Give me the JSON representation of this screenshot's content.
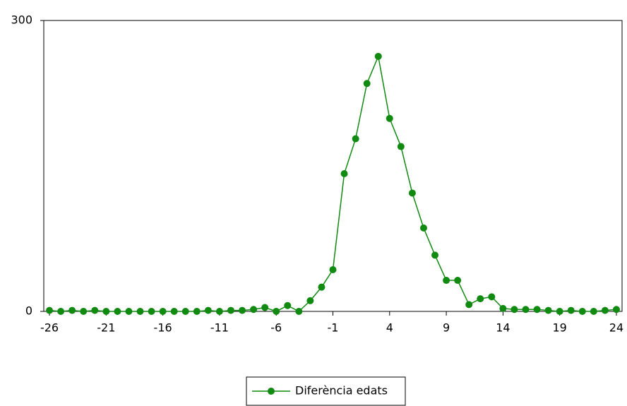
{
  "chart_data": {
    "type": "line",
    "x": [
      -26,
      -25,
      -24,
      -23,
      -22,
      -21,
      -20,
      -19,
      -18,
      -17,
      -16,
      -15,
      -14,
      -13,
      -12,
      -11,
      -10,
      -9,
      -8,
      -7,
      -6,
      -5,
      -4,
      -3,
      -2,
      -1,
      0,
      1,
      2,
      3,
      4,
      5,
      6,
      7,
      8,
      9,
      10,
      11,
      12,
      13,
      14,
      15,
      16,
      17,
      18,
      19,
      20,
      21,
      22,
      23,
      24
    ],
    "series": [
      {
        "name": "Diferència edats",
        "color": "#108a10",
        "values": [
          1,
          0,
          1,
          0,
          1,
          0,
          0,
          0,
          0,
          0,
          0,
          0,
          0,
          0,
          1,
          0,
          1,
          1,
          2,
          4,
          0,
          6,
          0,
          11,
          25,
          43,
          142,
          178,
          235,
          263,
          199,
          170,
          122,
          86,
          58,
          32,
          32,
          7,
          13,
          15,
          3,
          2,
          2,
          2,
          1,
          0,
          1,
          0,
          0,
          1,
          2
        ]
      }
    ],
    "xlim": [
      -26.5,
      24.5
    ],
    "xticks": [
      -26,
      -21,
      -16,
      -11,
      -6,
      -1,
      4,
      9,
      14,
      19,
      24
    ],
    "ylim": [
      0,
      300
    ],
    "yticks": [
      0,
      300
    ],
    "legend": "bottom"
  }
}
